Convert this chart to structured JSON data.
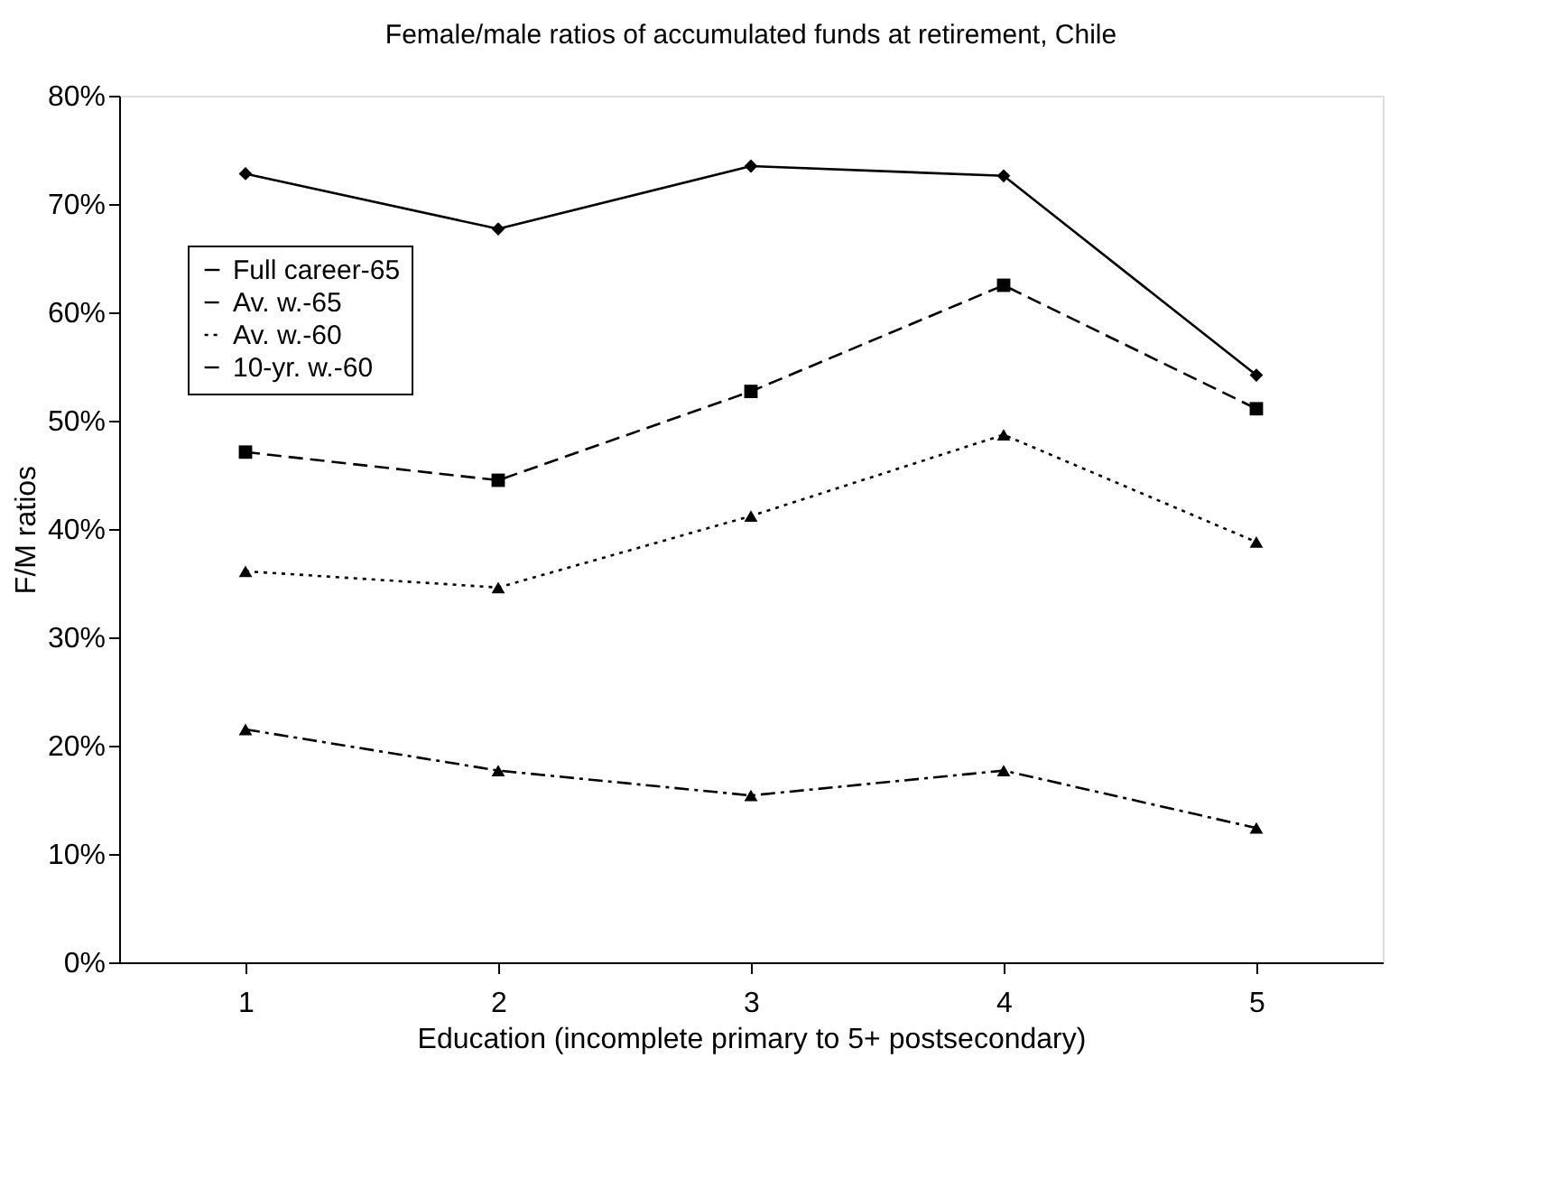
{
  "chart_data": {
    "type": "line",
    "title": "Female/male ratios of accumulated funds at retirement, Chile",
    "xlabel": "Education (incomplete primary to 5+ postsecondary)",
    "ylabel": "F/M ratios",
    "categories": [
      "1",
      "2",
      "3",
      "4",
      "5"
    ],
    "series": [
      {
        "name": "Full career-65",
        "color": "#000000",
        "marker": "diamond",
        "line_style": "solid",
        "values": [
          72.8,
          67.7,
          73.5,
          72.6,
          54.2
        ]
      },
      {
        "name": "Av. w.-65",
        "color": "#000000",
        "marker": "square",
        "line_style": "dashed",
        "values": [
          47.1,
          44.5,
          52.7,
          62.5,
          51.1
        ]
      },
      {
        "name": "Av. w.-60",
        "color": "#000000",
        "marker": "triangle",
        "line_style": "dotted",
        "values": [
          36.1,
          34.6,
          41.2,
          48.7,
          38.8
        ]
      },
      {
        "name": "10-yr. w.-60",
        "color": "#000000",
        "marker": "triangle",
        "line_style": "dashdot",
        "values": [
          21.5,
          17.7,
          15.4,
          17.7,
          12.4
        ]
      }
    ],
    "ylim": [
      0,
      80
    ],
    "yticks": [
      {
        "value": 0,
        "label": "0%"
      },
      {
        "value": 10,
        "label": "10%"
      },
      {
        "value": 20,
        "label": "20%"
      },
      {
        "value": 30,
        "label": "30%"
      },
      {
        "value": 40,
        "label": "40%"
      },
      {
        "value": 50,
        "label": "50%"
      },
      {
        "value": 60,
        "label": "60%"
      },
      {
        "value": 70,
        "label": "70%"
      },
      {
        "value": 80,
        "label": "80%"
      }
    ],
    "grid": false,
    "legend": "top left"
  }
}
